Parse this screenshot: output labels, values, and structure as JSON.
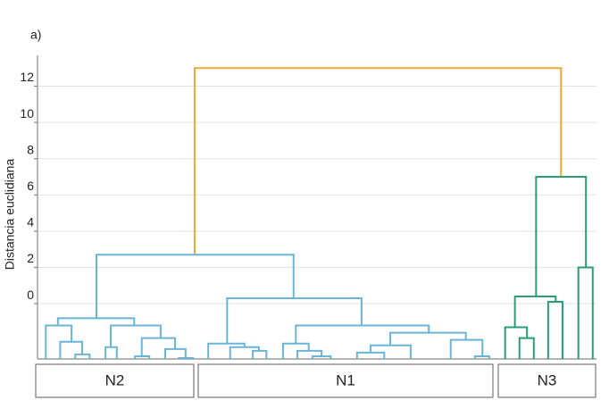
{
  "chart_data": {
    "type": "dendrogram",
    "panel_label": "a)",
    "ylabel": "Distancia euclidiana",
    "ylim": [
      -3.05,
      13.7
    ],
    "yticks": [
      0,
      2,
      4,
      6,
      8,
      10,
      12
    ],
    "xlim": [
      0,
      74
    ],
    "grid": true,
    "groups": [
      "N2",
      "N1",
      "N3"
    ],
    "links": [
      {
        "color": "#f0a830",
        "x": [
          20.8,
          20.8,
          69.3,
          69.3
        ],
        "y": [
          2.7,
          13.0,
          13.0,
          7.0
        ]
      },
      {
        "color": "#6ab4d8",
        "x": [
          7.8,
          7.8,
          33.9,
          33.9
        ],
        "y": [
          -0.8,
          2.7,
          2.7,
          0.3
        ]
      },
      {
        "color": "#6ab4d8",
        "x": [
          2.7,
          2.7,
          12.8,
          12.8
        ],
        "y": [
          -1.2,
          -0.8,
          -0.8,
          -1.2
        ]
      },
      {
        "color": "#6ab4d8",
        "x": [
          1.1,
          1.1,
          4.5,
          4.5
        ],
        "y": [
          -3.05,
          -1.2,
          -1.2,
          -2.1
        ]
      },
      {
        "color": "#6ab4d8",
        "x": [
          3.0,
          3.0,
          5.9,
          5.9
        ],
        "y": [
          -3.05,
          -2.1,
          -2.1,
          -2.8
        ]
      },
      {
        "color": "#6ab4d8",
        "x": [
          5.0,
          5.0,
          6.9,
          6.9
        ],
        "y": [
          -3.05,
          -2.8,
          -2.8,
          -3.05
        ]
      },
      {
        "color": "#6ab4d8",
        "x": [
          9.7,
          9.7,
          16.3,
          16.3
        ],
        "y": [
          -2.4,
          -1.2,
          -1.2,
          -1.9
        ]
      },
      {
        "color": "#6ab4d8",
        "x": [
          9.0,
          9.0,
          10.5,
          10.5
        ],
        "y": [
          -3.05,
          -2.4,
          -2.4,
          -3.05
        ]
      },
      {
        "color": "#6ab4d8",
        "x": [
          13.8,
          13.8,
          18.2,
          18.2
        ],
        "y": [
          -2.9,
          -1.9,
          -1.9,
          -2.5
        ]
      },
      {
        "color": "#6ab4d8",
        "x": [
          12.9,
          12.9,
          14.8,
          14.8
        ],
        "y": [
          -3.05,
          -2.9,
          -2.9,
          -3.05
        ]
      },
      {
        "color": "#6ab4d8",
        "x": [
          16.9,
          16.9,
          19.6,
          19.6
        ],
        "y": [
          -3.05,
          -2.5,
          -2.5,
          -3.0
        ]
      },
      {
        "color": "#6ab4d8",
        "x": [
          18.7,
          18.7,
          20.6,
          20.6
        ],
        "y": [
          -3.05,
          -3.0,
          -3.0,
          -3.05
        ]
      },
      {
        "color": "#6ab4d8",
        "x": [
          25.1,
          25.1,
          42.9,
          42.9
        ],
        "y": [
          -2.2,
          0.3,
          0.3,
          -1.2
        ]
      },
      {
        "color": "#6ab4d8",
        "x": [
          22.6,
          22.6,
          27.4,
          27.4
        ],
        "y": [
          -3.05,
          -2.2,
          -2.2,
          -2.4
        ]
      },
      {
        "color": "#6ab4d8",
        "x": [
          25.5,
          25.5,
          29.3,
          29.3
        ],
        "y": [
          -3.05,
          -2.4,
          -2.4,
          -2.6
        ]
      },
      {
        "color": "#6ab4d8",
        "x": [
          28.5,
          28.5,
          30.3,
          30.3
        ],
        "y": [
          -3.05,
          -2.6,
          -2.6,
          -3.05
        ]
      },
      {
        "color": "#6ab4d8",
        "x": [
          34.2,
          34.2,
          51.8,
          51.8
        ],
        "y": [
          -2.2,
          -1.2,
          -1.2,
          -1.6
        ]
      },
      {
        "color": "#6ab4d8",
        "x": [
          32.5,
          32.5,
          35.9,
          35.9
        ],
        "y": [
          -3.05,
          -2.2,
          -2.2,
          -2.6
        ]
      },
      {
        "color": "#6ab4d8",
        "x": [
          34.4,
          34.4,
          37.6,
          37.6
        ],
        "y": [
          -3.05,
          -2.6,
          -2.6,
          -2.9
        ]
      },
      {
        "color": "#6ab4d8",
        "x": [
          36.4,
          36.4,
          38.8,
          38.8
        ],
        "y": [
          -3.05,
          -2.9,
          -2.9,
          -3.05
        ]
      },
      {
        "color": "#6ab4d8",
        "x": [
          46.7,
          46.7,
          56.7,
          56.7
        ],
        "y": [
          -2.3,
          -1.6,
          -1.6,
          -2.0
        ]
      },
      {
        "color": "#6ab4d8",
        "x": [
          44.1,
          44.1,
          49.4,
          49.4
        ],
        "y": [
          -2.7,
          -2.3,
          -2.3,
          -3.05
        ]
      },
      {
        "color": "#6ab4d8",
        "x": [
          42.3,
          42.3,
          45.9,
          45.9
        ],
        "y": [
          -3.05,
          -2.7,
          -2.7,
          -3.05
        ]
      },
      {
        "color": "#6ab4d8",
        "x": [
          54.7,
          54.7,
          58.9,
          58.9
        ],
        "y": [
          -3.05,
          -2.0,
          -2.0,
          -2.9
        ]
      },
      {
        "color": "#6ab4d8",
        "x": [
          57.9,
          57.9,
          59.8,
          59.8
        ],
        "y": [
          -3.05,
          -2.9,
          -2.9,
          -3.05
        ]
      },
      {
        "color": "#2a9d78",
        "x": [
          66.0,
          66.0,
          72.6,
          72.6
        ],
        "y": [
          0.4,
          7.0,
          7.0,
          2.0
        ]
      },
      {
        "color": "#2a9d78",
        "x": [
          63.2,
          63.2,
          68.6,
          68.6
        ],
        "y": [
          -1.3,
          0.4,
          0.4,
          0.1
        ]
      },
      {
        "color": "#2a9d78",
        "x": [
          61.9,
          61.9,
          64.8,
          64.8
        ],
        "y": [
          -3.05,
          -1.3,
          -1.3,
          -1.9
        ]
      },
      {
        "color": "#2a9d78",
        "x": [
          63.8,
          63.8,
          65.7,
          65.7
        ],
        "y": [
          -3.05,
          -1.9,
          -1.9,
          -3.05
        ]
      },
      {
        "color": "#2a9d78",
        "x": [
          67.6,
          67.6,
          69.5,
          69.5
        ],
        "y": [
          -3.05,
          0.1,
          0.1,
          -3.05
        ]
      },
      {
        "color": "#2a9d78",
        "x": [
          71.6,
          71.6,
          73.5,
          73.5
        ],
        "y": [
          -3.05,
          2.0,
          2.0,
          -3.05
        ]
      }
    ]
  }
}
